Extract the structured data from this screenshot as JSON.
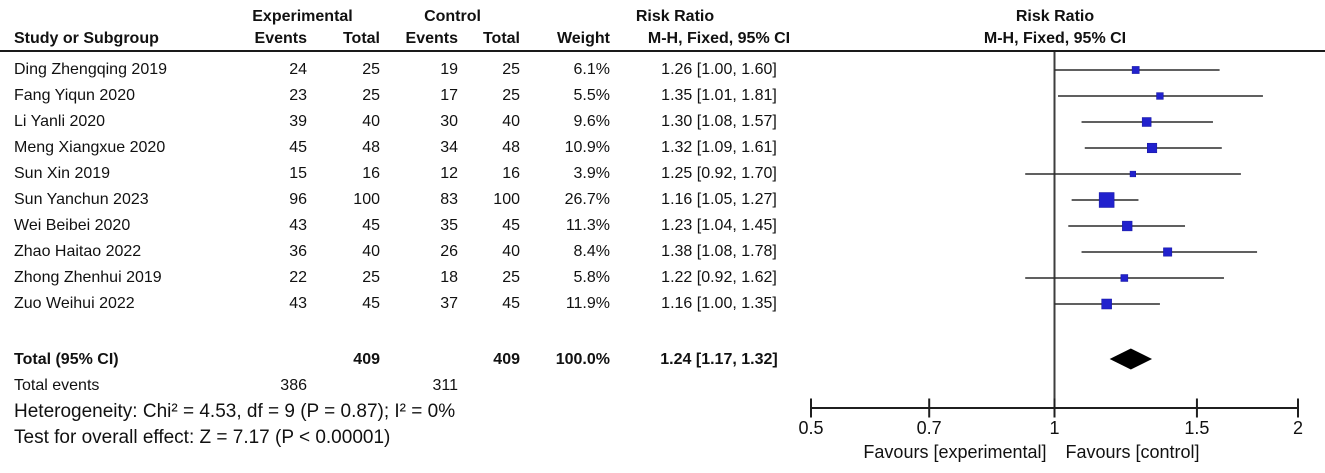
{
  "header": {
    "col_study": "Study or Subgroup",
    "group_experimental": "Experimental",
    "group_control": "Control",
    "col_events": "Events",
    "col_total": "Total",
    "col_weight": "Weight",
    "text_effect_title": "Risk Ratio",
    "text_effect_sub": "M-H, Fixed, 95% CI",
    "plot_effect_title": "Risk Ratio",
    "plot_effect_sub": "M-H, Fixed, 95% CI"
  },
  "chart_data": {
    "type": "forest",
    "effect_measure": "Risk Ratio",
    "method_label": "M-H, Fixed, 95% CI",
    "x_scale": "log",
    "x_range": [
      0.5,
      2
    ],
    "x_ticks": [
      "0.5",
      "0.7",
      "1",
      "1.5",
      "2"
    ],
    "x_tick_values": [
      0.5,
      0.7,
      1,
      1.5,
      2
    ],
    "marker_color": "#2121cd",
    "diamond_color": "#000000",
    "studies": [
      {
        "name": "Ding Zhengqing 2019",
        "exp_events": "24",
        "exp_total": "25",
        "ctl_events": "19",
        "ctl_total": "25",
        "weight": "6.1%",
        "weight_pct": 6.1,
        "rr": 1.26,
        "ci_low": 1.0,
        "ci_high": 1.6,
        "rr_text": "1.26 [1.00, 1.60]"
      },
      {
        "name": "Fang Yiqun 2020",
        "exp_events": "23",
        "exp_total": "25",
        "ctl_events": "17",
        "ctl_total": "25",
        "weight": "5.5%",
        "weight_pct": 5.5,
        "rr": 1.35,
        "ci_low": 1.01,
        "ci_high": 1.81,
        "rr_text": "1.35 [1.01, 1.81]"
      },
      {
        "name": "Li Yanli 2020",
        "exp_events": "39",
        "exp_total": "40",
        "ctl_events": "30",
        "ctl_total": "40",
        "weight": "9.6%",
        "weight_pct": 9.6,
        "rr": 1.3,
        "ci_low": 1.08,
        "ci_high": 1.57,
        "rr_text": "1.30 [1.08, 1.57]"
      },
      {
        "name": "Meng Xiangxue 2020",
        "exp_events": "45",
        "exp_total": "48",
        "ctl_events": "34",
        "ctl_total": "48",
        "weight": "10.9%",
        "weight_pct": 10.9,
        "rr": 1.32,
        "ci_low": 1.09,
        "ci_high": 1.61,
        "rr_text": "1.32 [1.09, 1.61]"
      },
      {
        "name": "Sun Xin 2019",
        "exp_events": "15",
        "exp_total": "16",
        "ctl_events": "12",
        "ctl_total": "16",
        "weight": "3.9%",
        "weight_pct": 3.9,
        "rr": 1.25,
        "ci_low": 0.92,
        "ci_high": 1.7,
        "rr_text": "1.25 [0.92, 1.70]"
      },
      {
        "name": "Sun Yanchun 2023",
        "exp_events": "96",
        "exp_total": "100",
        "ctl_events": "83",
        "ctl_total": "100",
        "weight": "26.7%",
        "weight_pct": 26.7,
        "rr": 1.16,
        "ci_low": 1.05,
        "ci_high": 1.27,
        "rr_text": "1.16 [1.05, 1.27]"
      },
      {
        "name": "Wei Beibei 2020",
        "exp_events": "43",
        "exp_total": "45",
        "ctl_events": "35",
        "ctl_total": "45",
        "weight": "11.3%",
        "weight_pct": 11.3,
        "rr": 1.23,
        "ci_low": 1.04,
        "ci_high": 1.45,
        "rr_text": "1.23 [1.04, 1.45]"
      },
      {
        "name": "Zhao Haitao 2022",
        "exp_events": "36",
        "exp_total": "40",
        "ctl_events": "26",
        "ctl_total": "40",
        "weight": "8.4%",
        "weight_pct": 8.4,
        "rr": 1.38,
        "ci_low": 1.08,
        "ci_high": 1.78,
        "rr_text": "1.38 [1.08, 1.78]"
      },
      {
        "name": "Zhong Zhenhui 2019",
        "exp_events": "22",
        "exp_total": "25",
        "ctl_events": "18",
        "ctl_total": "25",
        "weight": "5.8%",
        "weight_pct": 5.8,
        "rr": 1.22,
        "ci_low": 0.92,
        "ci_high": 1.62,
        "rr_text": "1.22 [0.92, 1.62]"
      },
      {
        "name": "Zuo Weihui 2022",
        "exp_events": "43",
        "exp_total": "45",
        "ctl_events": "37",
        "ctl_total": "45",
        "weight": "11.9%",
        "weight_pct": 11.9,
        "rr": 1.16,
        "ci_low": 1.0,
        "ci_high": 1.35,
        "rr_text": "1.16 [1.00, 1.35]"
      }
    ],
    "total": {
      "label": "Total (95% CI)",
      "exp_total": "409",
      "ctl_total": "409",
      "weight": "100.0%",
      "rr": 1.24,
      "ci_low": 1.17,
      "ci_high": 1.32,
      "rr_text": "1.24 [1.17, 1.32]"
    },
    "total_events": {
      "label": "Total events",
      "exp": "386",
      "ctl": "311"
    }
  },
  "footer": {
    "heterogeneity": "Heterogeneity: Chi² = 4.53, df = 9 (P = 0.87); I² = 0%",
    "overall_effect": "Test for overall effect: Z = 7.17 (P < 0.00001)",
    "favours_left": "Favours [experimental]",
    "favours_right": "Favours [control]"
  }
}
